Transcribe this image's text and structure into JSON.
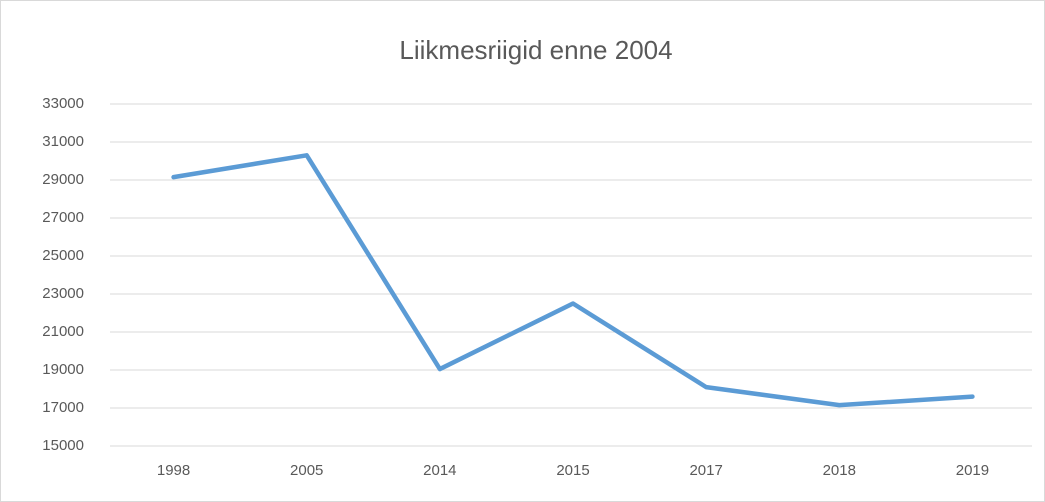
{
  "chart_data": {
    "type": "line",
    "title": "Liikmesriigid enne 2004",
    "categories": [
      "1998",
      "2005",
      "2014",
      "2015",
      "2017",
      "2018",
      "2019"
    ],
    "series": [
      {
        "name": "Liikmesriigid enne 2004",
        "color": "#5b9bd5",
        "values": [
          29150,
          30300,
          19050,
          22500,
          18100,
          17150,
          17600
        ]
      }
    ],
    "ylim": [
      15000,
      33000
    ],
    "yticks": [
      15000,
      17000,
      19000,
      21000,
      23000,
      25000,
      27000,
      29000,
      31000,
      33000
    ],
    "grid": true,
    "legend": false
  }
}
